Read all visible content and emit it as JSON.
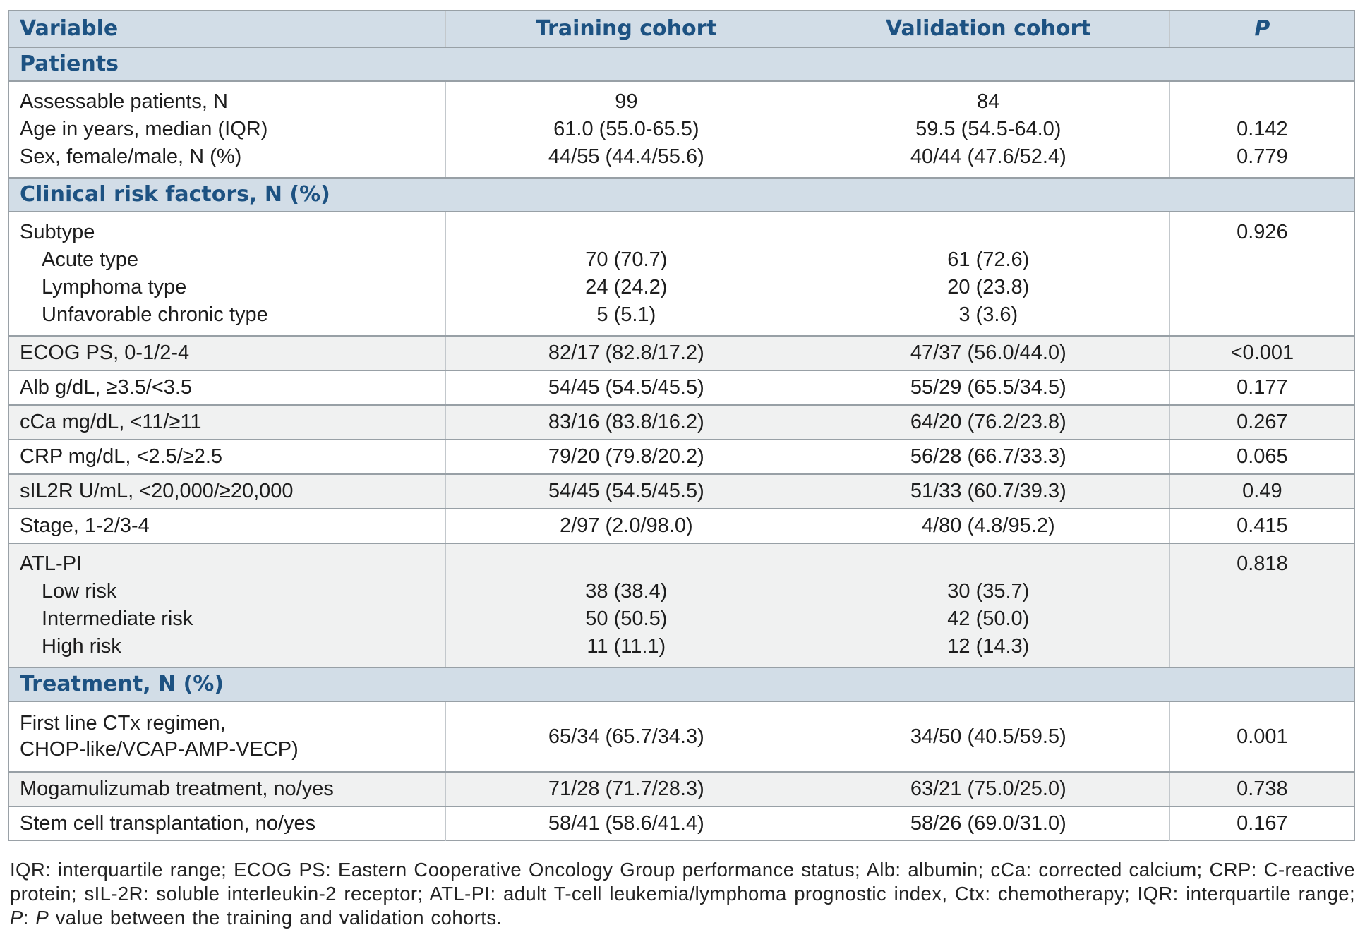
{
  "colors": {
    "header_text": "#1d5282",
    "section_bg": "#d2dde7",
    "alt_row_bg": "#f0f1f1"
  },
  "table": {
    "columns": [
      "Variable",
      "Training cohort",
      "Validation cohort",
      "P"
    ],
    "rows": [
      {
        "kind": "section",
        "label": "Patients"
      },
      {
        "kind": "block",
        "lines": [
          {
            "label": "Assessable patients, N",
            "t": "99",
            "v": "84",
            "p": ""
          },
          {
            "label": "Age in years, median (IQR)",
            "t": "61.0 (55.0-65.5)",
            "v": "59.5 (54.5-64.0)",
            "p": "0.142"
          },
          {
            "label": "Sex, female/male, N (%)",
            "t": "44/55 (44.4/55.6)",
            "v": "40/44 (47.6/52.4)",
            "p": "0.779"
          }
        ]
      },
      {
        "kind": "section",
        "label": "Clinical risk factors, N (%)"
      },
      {
        "kind": "block",
        "lines": [
          {
            "label": "Subtype",
            "t": "",
            "v": "",
            "p": "0.926"
          },
          {
            "label": "Acute type",
            "t": "70 (70.7)",
            "v": "61 (72.6)",
            "p": ""
          },
          {
            "label": "Lymphoma type",
            "t": "24 (24.2)",
            "v": "20 (23.8)",
            "p": ""
          },
          {
            "label": "Unfavorable chronic type",
            "t": "5 (5.1)",
            "v": "3 (3.6)",
            "p": ""
          }
        ]
      },
      {
        "kind": "row",
        "label": "ECOG PS, 0-1/2-4",
        "t": "82/17 (82.8/17.2)",
        "v": "47/37 (56.0/44.0)",
        "p": "<0.001"
      },
      {
        "kind": "row",
        "label": "Alb g/dL, ≥3.5/<3.5",
        "t": "54/45 (54.5/45.5)",
        "v": "55/29 (65.5/34.5)",
        "p": "0.177"
      },
      {
        "kind": "row",
        "label": "cCa mg/dL, <11/≥11",
        "t": "83/16 (83.8/16.2)",
        "v": "64/20 (76.2/23.8)",
        "p": "0.267"
      },
      {
        "kind": "row",
        "label": "CRP mg/dL, <2.5/≥2.5",
        "t": "79/20 (79.8/20.2)",
        "v": "56/28 (66.7/33.3)",
        "p": "0.065"
      },
      {
        "kind": "row",
        "label": "sIL2R U/mL, <20,000/≥20,000",
        "t": "54/45 (54.5/45.5)",
        "v": "51/33 (60.7/39.3)",
        "p": "0.49"
      },
      {
        "kind": "row",
        "label": "Stage, 1-2/3-4",
        "t": "2/97 (2.0/98.0)",
        "v": "4/80 (4.8/95.2)",
        "p": "0.415"
      },
      {
        "kind": "block",
        "lines": [
          {
            "label": "ATL-PI",
            "t": "",
            "v": "",
            "p": "0.818"
          },
          {
            "label": "Low risk",
            "t": "38 (38.4)",
            "v": "30 (35.7)",
            "p": ""
          },
          {
            "label": "Intermediate risk",
            "t": "50 (50.5)",
            "v": "42 (50.0)",
            "p": ""
          },
          {
            "label": "High risk",
            "t": "11 (11.1)",
            "v": "12 (14.3)",
            "p": ""
          }
        ]
      },
      {
        "kind": "section",
        "label": "Treatment, N (%)"
      },
      {
        "kind": "block2",
        "label_lines": [
          "First line CTx regimen,",
          "CHOP-like/VCAP-AMP-VECP)"
        ],
        "t": "65/34 (65.7/34.3)",
        "v": "34/50 (40.5/59.5)",
        "p": "0.001"
      },
      {
        "kind": "row",
        "label": "Mogamulizumab treatment, no/yes",
        "t": "71/28 (71.7/28.3)",
        "v": "63/21 (75.0/25.0)",
        "p": "0.738"
      },
      {
        "kind": "row",
        "label": "Stem cell transplantation, no/yes",
        "t": "58/41 (58.6/41.4)",
        "v": "58/26 (69.0/31.0)",
        "p": "0.167"
      }
    ]
  },
  "footnote": {
    "main": "IQR: interquartile range; ECOG PS: Eastern Cooperative Oncology Group performance status; Alb: albumin; cCa: corrected calcium; CRP: C-reactive protein; sIL-2R: soluble interleukin-2 receptor; ATL-PI: adult T-cell leukemia/lymphoma prognostic index, Ctx: chemotherapy; IQR: interquartile range; ",
    "p_abbrev": "P",
    "colon": ": ",
    "p_word": "P",
    "rest": " value between the training and validation cohorts."
  }
}
